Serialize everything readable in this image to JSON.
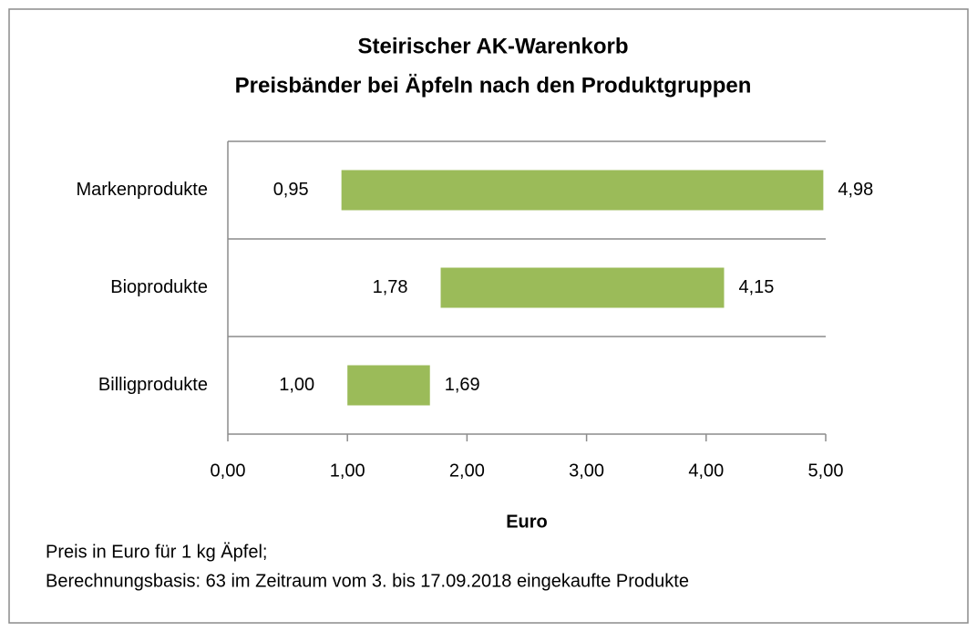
{
  "chart_data": {
    "type": "floating_bar",
    "title": [
      "Steirischer AK-Warenkorb",
      "Preisbänder bei Äpfeln nach den Produktgruppen"
    ],
    "categories": [
      "Markenprodukte",
      "Bioprodukte",
      "Billigprodukte"
    ],
    "low_values": [
      0.95,
      1.78,
      1.0
    ],
    "low_labels": [
      "0,95",
      "1,78",
      "1,00"
    ],
    "high_values": [
      4.98,
      4.15,
      1.69
    ],
    "high_labels": [
      "4,98",
      "4,15",
      "1,69"
    ],
    "color": "#9bbb59",
    "xlim": [
      0,
      5
    ],
    "xticks": [
      {
        "value": 0,
        "label": "0,00"
      },
      {
        "value": 1,
        "label": "1,00"
      },
      {
        "value": 2,
        "label": "2,00"
      },
      {
        "value": 3,
        "label": "3,00"
      },
      {
        "value": 4,
        "label": "4,00"
      },
      {
        "value": 5,
        "label": "5,00"
      }
    ],
    "x_label": "Euro",
    "notes": [
      "Preis in Euro für 1 kg Äpfel;",
      "Berechnungsbasis: 63 im Zeitraum vom 3. bis 17.09.2018 eingekaufte Produkte"
    ]
  }
}
